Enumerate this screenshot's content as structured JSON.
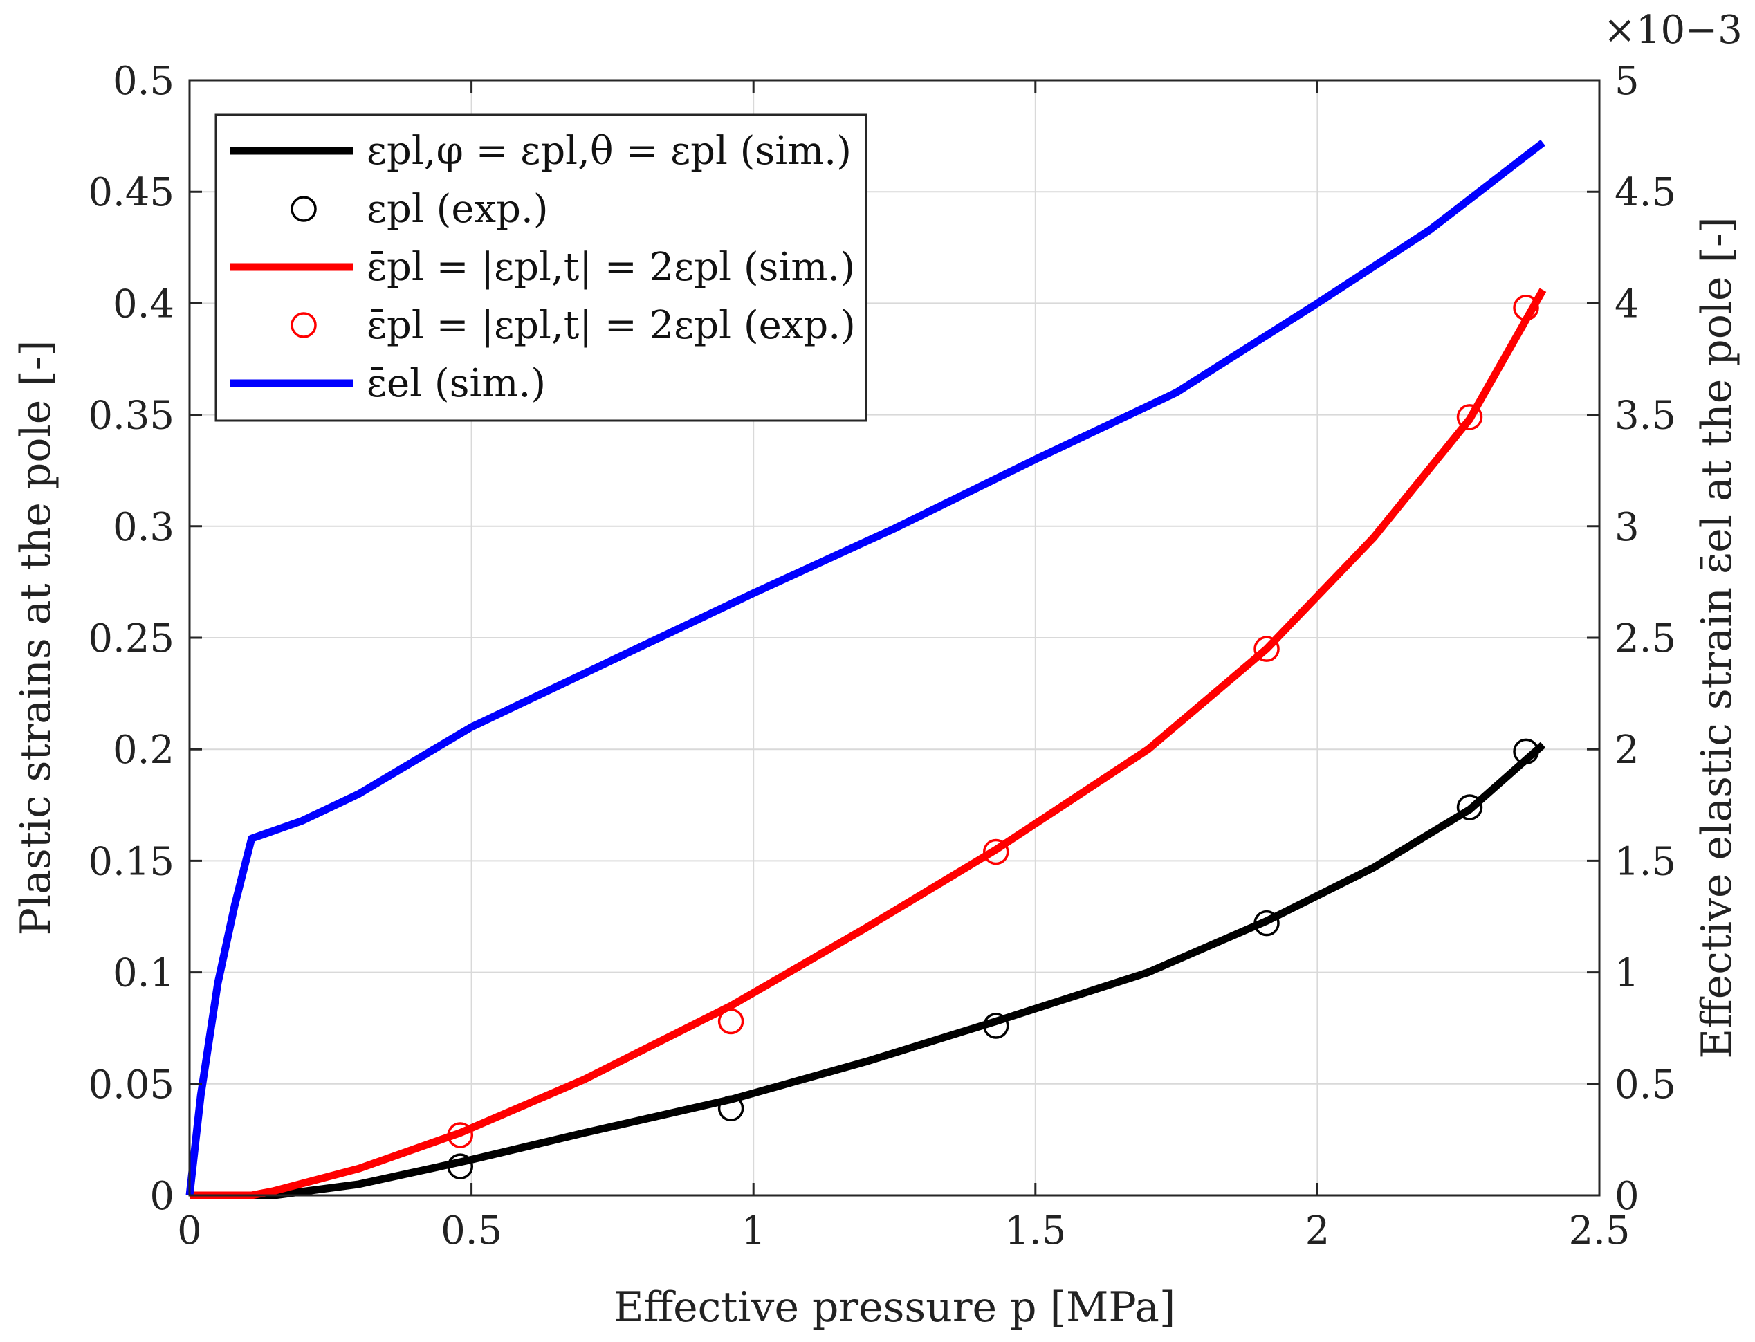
{
  "chart_data": {
    "type": "line",
    "xlabel": "Effective pressure p [MPa]",
    "ylabel_left": "Plastic strains at the pole [-]",
    "ylabel_right": "Effective elastic strain ε̄el at the pole [-]",
    "right_axis_exponent": "×10−3",
    "xlim": [
      0,
      2.5
    ],
    "ylim_left": [
      0,
      0.5
    ],
    "ylim_right": [
      0,
      5
    ],
    "grid": true,
    "legend_position": "top-left",
    "x_ticks": [
      "0",
      "0.5",
      "1",
      "1.5",
      "2",
      "2.5"
    ],
    "y_left_ticks": [
      "0",
      "0.05",
      "0.1",
      "0.15",
      "0.2",
      "0.25",
      "0.3",
      "0.35",
      "0.4",
      "0.45",
      "0.5"
    ],
    "y_right_ticks": [
      "0",
      "0.5",
      "1",
      "1.5",
      "2",
      "2.5",
      "3",
      "3.5",
      "4",
      "4.5",
      "5"
    ],
    "series": [
      {
        "name": "ε_pl,φ = ε_pl,θ = ε_pl (sim.)",
        "legend_label": "εpl,φ = εpl,θ = εpl (sim.)",
        "axis": "left",
        "style": "line",
        "color": "#000000",
        "x": [
          0,
          0.11,
          0.15,
          0.3,
          0.5,
          0.7,
          0.96,
          1.2,
          1.43,
          1.7,
          1.91,
          2.1,
          2.27,
          2.4
        ],
        "y": [
          0,
          0,
          0,
          0.005,
          0.016,
          0.028,
          0.043,
          0.06,
          0.078,
          0.1,
          0.123,
          0.147,
          0.173,
          0.202
        ]
      },
      {
        "name": "ε_pl (exp.)",
        "legend_label": "εpl (exp.)",
        "axis": "left",
        "style": "marker",
        "color": "#000000",
        "x": [
          0.48,
          0.96,
          1.43,
          1.91,
          2.27,
          2.37
        ],
        "y": [
          0.013,
          0.039,
          0.076,
          0.122,
          0.174,
          0.199
        ]
      },
      {
        "name": "ε̄_pl = |ε_pl,t| = 2ε_pl (sim.)",
        "legend_label": "ε̄pl = |εpl,t| = 2εpl (sim.)",
        "axis": "left",
        "style": "line",
        "color": "#ff0000",
        "x": [
          0,
          0.11,
          0.15,
          0.3,
          0.48,
          0.7,
          0.96,
          1.2,
          1.43,
          1.7,
          1.91,
          2.1,
          2.27,
          2.4
        ],
        "y": [
          0,
          0,
          0.002,
          0.012,
          0.028,
          0.052,
          0.085,
          0.12,
          0.155,
          0.2,
          0.245,
          0.295,
          0.348,
          0.406
        ]
      },
      {
        "name": "ε̄_pl = |ε_pl,t| = 2ε_pl (exp.)",
        "legend_label": "ε̄pl = |εpl,t| = 2εpl (exp.)",
        "axis": "left",
        "style": "marker",
        "color": "#ff0000",
        "x": [
          0.48,
          0.96,
          1.43,
          1.91,
          2.27,
          2.37
        ],
        "y": [
          0.027,
          0.078,
          0.154,
          0.245,
          0.349,
          0.398
        ]
      },
      {
        "name": "ε̄_el (sim.)",
        "legend_label": "ε̄el (sim.)",
        "axis": "right",
        "style": "line",
        "color": "#0000ff",
        "x": [
          0,
          0.02,
          0.05,
          0.08,
          0.11,
          0.2,
          0.3,
          0.5,
          0.75,
          1.0,
          1.25,
          1.5,
          1.75,
          2.0,
          2.2,
          2.4
        ],
        "y": [
          0,
          0.45,
          0.95,
          1.3,
          1.6,
          1.68,
          1.8,
          2.1,
          2.4,
          2.7,
          2.99,
          3.3,
          3.6,
          4.0,
          4.33,
          4.72
        ]
      }
    ]
  }
}
